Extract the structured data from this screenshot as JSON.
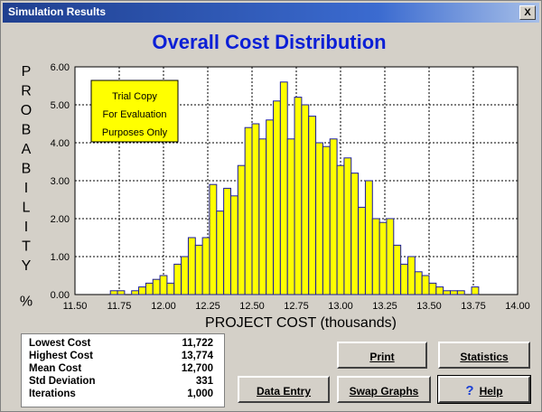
{
  "window": {
    "title": "Simulation Results",
    "close_glyph": "X"
  },
  "chart_data": {
    "type": "bar",
    "title": "Overall Cost Distribution",
    "xlabel": "PROJECT COST  (thousands)",
    "ylabel": "PROBABILITY %",
    "xlim": [
      11.5,
      14.0
    ],
    "ylim": [
      0,
      6.0
    ],
    "grid": true,
    "xticks": [
      "11.50",
      "11.75",
      "12.00",
      "12.25",
      "12.50",
      "12.75",
      "13.00",
      "13.25",
      "13.50",
      "13.75",
      "14.00"
    ],
    "yticks": [
      "0.00",
      "1.00",
      "2.00",
      "3.00",
      "4.00",
      "5.00",
      "6.00"
    ],
    "bin_width": 0.04,
    "bins": [
      11.72,
      11.76,
      11.8,
      11.84,
      11.88,
      11.92,
      11.96,
      12.0,
      12.04,
      12.08,
      12.12,
      12.16,
      12.2,
      12.24,
      12.28,
      12.32,
      12.36,
      12.4,
      12.44,
      12.48,
      12.52,
      12.56,
      12.6,
      12.64,
      12.68,
      12.72,
      12.76,
      12.8,
      12.84,
      12.88,
      12.92,
      12.96,
      13.0,
      13.04,
      13.08,
      13.12,
      13.16,
      13.2,
      13.24,
      13.28,
      13.32,
      13.36,
      13.4,
      13.44,
      13.48,
      13.52,
      13.56,
      13.6,
      13.64,
      13.68,
      13.72,
      13.76
    ],
    "values": [
      0.1,
      0.1,
      0.0,
      0.1,
      0.2,
      0.3,
      0.4,
      0.5,
      0.3,
      0.8,
      1.0,
      1.5,
      1.3,
      1.5,
      2.9,
      2.2,
      2.8,
      2.6,
      3.4,
      4.4,
      4.5,
      4.1,
      4.6,
      5.1,
      5.6,
      4.1,
      5.2,
      5.0,
      4.7,
      4.0,
      3.9,
      4.1,
      3.4,
      3.6,
      3.2,
      2.3,
      3.0,
      2.0,
      1.9,
      2.0,
      1.3,
      0.8,
      1.0,
      0.6,
      0.5,
      0.3,
      0.2,
      0.1,
      0.1,
      0.1,
      0.0,
      0.2
    ]
  },
  "watermark": {
    "line1": "Trial Copy",
    "line2": "For Evaluation",
    "line3": "Purposes Only"
  },
  "stats": [
    {
      "label": "Lowest Cost",
      "value": "11,722"
    },
    {
      "label": "Highest Cost",
      "value": "13,774"
    },
    {
      "label": "Mean Cost",
      "value": "12,700"
    },
    {
      "label": "Std Deviation",
      "value": "331"
    },
    {
      "label": "Iterations",
      "value": "1,000"
    }
  ],
  "buttons": {
    "print": "Print",
    "statistics": "Statistics",
    "data_entry": "Data Entry",
    "swap_graphs": "Swap Graphs",
    "help": "Help",
    "help_icon": "?"
  },
  "colors": {
    "bar_fill": "#ffff00",
    "bar_stroke": "#1a1aa0",
    "title": "#0b1fd6",
    "watermark_bg": "#ffff00"
  }
}
